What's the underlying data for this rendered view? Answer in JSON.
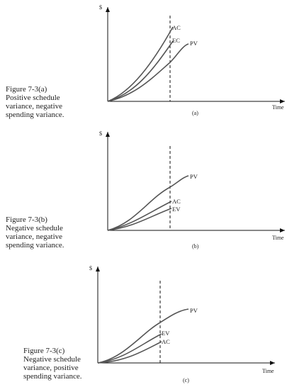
{
  "panels": [
    {
      "y_axis_label": "$",
      "x_axis_label": "Time",
      "caption": "(a)",
      "figure_text": [
        "Figure 7-3(a)",
        "Positive schedule",
        "variance, negative",
        "spending variance."
      ],
      "curve_labels": [
        "AC",
        "EC",
        "PV"
      ]
    },
    {
      "y_axis_label": "$",
      "x_axis_label": "Time",
      "caption": "(b)",
      "figure_text": [
        "Figure 7-3(b)",
        "Negative schedule",
        "variance, negative",
        "spending variance."
      ],
      "curve_labels": [
        "PV",
        "AC",
        "EV"
      ]
    },
    {
      "y_axis_label": "$",
      "x_axis_label": "Time",
      "caption": "(c)",
      "figure_text": [
        "Figure 7-3(c)",
        "Negative schedule",
        "variance, positive",
        "spending variance."
      ],
      "curve_labels": [
        "PV",
        "EV",
        "AC"
      ]
    }
  ]
}
